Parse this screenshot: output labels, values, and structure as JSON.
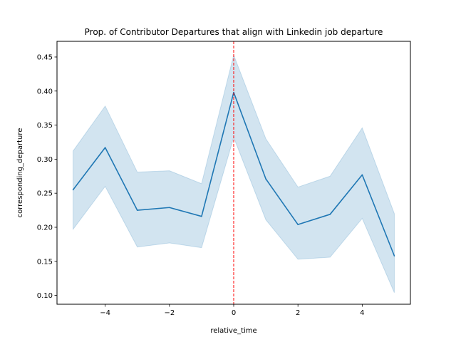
{
  "chart_data": {
    "type": "line",
    "title": "Prop. of Contributor Departures that align with Linkedin job departure",
    "xlabel": "relative_time",
    "ylabel": "corresponding_departure",
    "xlim": [
      -5.5,
      5.5
    ],
    "ylim": [
      0.087,
      0.473
    ],
    "x_ticks": [
      -4,
      -2,
      0,
      2,
      4
    ],
    "x_tick_labels": [
      "−4",
      "−2",
      "0",
      "2",
      "4"
    ],
    "y_ticks": [
      0.1,
      0.15,
      0.2,
      0.25,
      0.3,
      0.35,
      0.4,
      0.45
    ],
    "y_tick_labels": [
      "0.10",
      "0.15",
      "0.20",
      "0.25",
      "0.30",
      "0.35",
      "0.40",
      "0.45"
    ],
    "grid": false,
    "series": [
      {
        "x": [
          -5,
          -4,
          -3,
          -2,
          -1,
          0,
          1,
          2,
          3,
          4,
          5
        ],
        "y": [
          0.255,
          0.317,
          0.225,
          0.229,
          0.216,
          0.398,
          0.271,
          0.204,
          0.219,
          0.277,
          0.158
        ],
        "ci_lower": [
          0.197,
          0.26,
          0.171,
          0.177,
          0.17,
          0.332,
          0.211,
          0.153,
          0.156,
          0.213,
          0.104
        ],
        "ci_upper": [
          0.312,
          0.378,
          0.281,
          0.283,
          0.264,
          0.453,
          0.33,
          0.259,
          0.275,
          0.346,
          0.22
        ],
        "color": "#1f77b4"
      }
    ],
    "vline": {
      "x": 0,
      "color": "#ff0000",
      "style": "dashed"
    }
  }
}
